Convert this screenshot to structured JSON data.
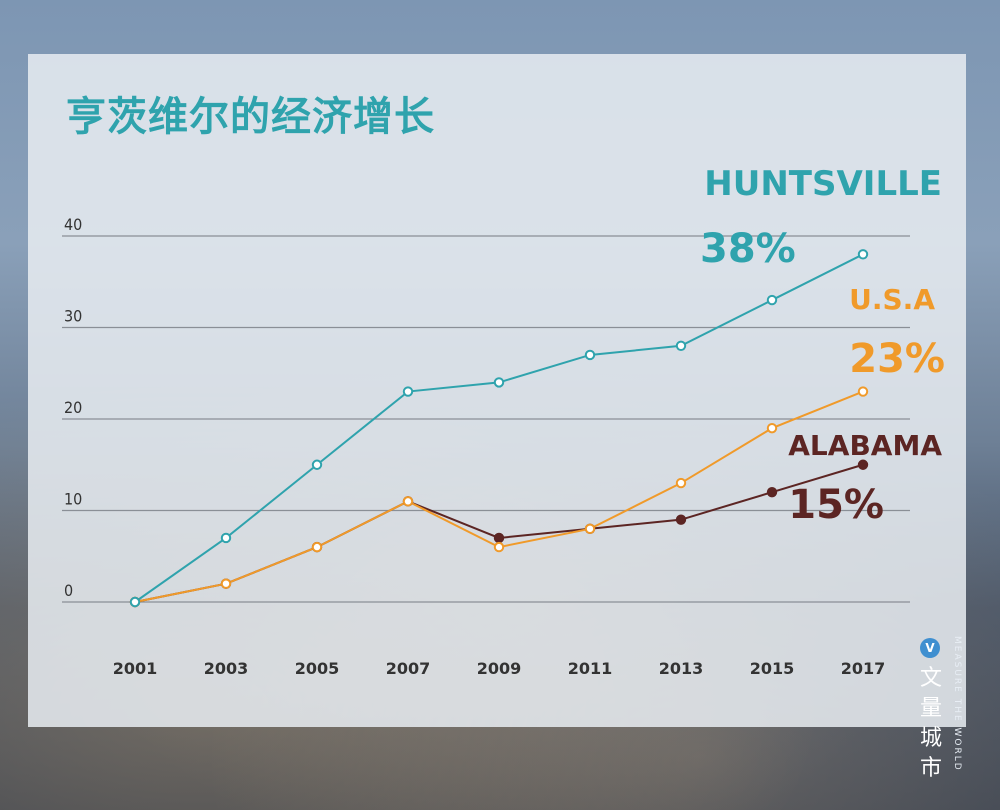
{
  "chart_data": {
    "type": "line",
    "title": "亨茨维尔的经济增长",
    "x": [
      "2001",
      "2003",
      "2005",
      "2007",
      "2009",
      "2011",
      "2013",
      "2015",
      "2017"
    ],
    "ylim": [
      0,
      40
    ],
    "yticks": [
      "0",
      "10",
      "20",
      "30",
      "40"
    ],
    "grid": true,
    "series": [
      {
        "name": "HUNTSVILLE",
        "end_label": "38%",
        "color": "#2fa3ad",
        "values": [
          0,
          7,
          15,
          23,
          24,
          27,
          28,
          33,
          38
        ]
      },
      {
        "name": "U.S.A",
        "end_label": "23%",
        "color": "#f09a2a",
        "values": [
          0,
          2,
          6,
          11,
          6,
          8,
          13,
          19,
          23
        ]
      },
      {
        "name": "ALABAMA",
        "end_label": "15%",
        "color": "#5c2523",
        "values": [
          0,
          2,
          6,
          11,
          7,
          8,
          9,
          12,
          15
        ]
      }
    ]
  },
  "watermark": {
    "logo_glyph": "V",
    "cn": "文量城市",
    "en": "MEASURE THE WORLD"
  }
}
